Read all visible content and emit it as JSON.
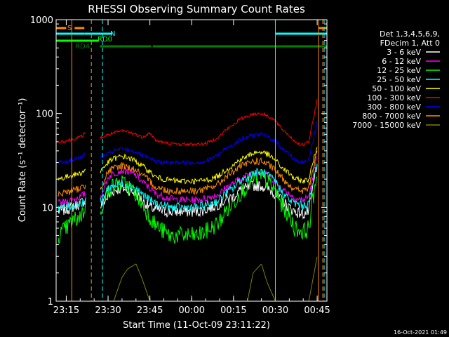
{
  "chart_data": {
    "type": "line",
    "title": "RHESSI Observing Summary Count Rates",
    "xlabel": "Start Time (11-Oct-09 23:11:22)",
    "ylabel": "Count Rate (s⁻¹ detector⁻¹)",
    "y_scale": "log",
    "ylim": [
      1,
      1000
    ],
    "xlim": [
      "23:11:22",
      "00:48:30"
    ],
    "x_ticks": [
      "23:15",
      "23:30",
      "23:45",
      "00:00",
      "00:15",
      "00:30",
      "00:45"
    ],
    "y_ticks": [
      "1",
      "10",
      "100",
      "1000"
    ],
    "legend_header": [
      "Det 1,3,4,5,6,9,",
      "FDecim 1, Att 0"
    ],
    "legend_position": "right",
    "timestamp": "16-Oct-2021 01:49",
    "x": [
      "23:12",
      "23:15",
      "23:17",
      "23:20",
      "23:22",
      "23:25",
      "23:27",
      "23:30",
      "23:32",
      "23:35",
      "23:37",
      "23:40",
      "23:42",
      "23:45",
      "23:47",
      "23:50",
      "23:52",
      "23:55",
      "23:57",
      "00:00",
      "00:02",
      "00:05",
      "00:07",
      "00:10",
      "00:12",
      "00:15",
      "00:17",
      "00:20",
      "00:22",
      "00:25",
      "00:27",
      "00:30",
      "00:32",
      "00:35",
      "00:37",
      "00:40",
      "00:42",
      "00:45"
    ],
    "series": [
      {
        "name": "3 - 6 keV",
        "color": "#ffffff",
        "values": [
          9,
          9.5,
          10,
          11,
          12,
          null,
          10,
          13,
          15,
          16,
          15.5,
          14,
          12,
          10,
          9.5,
          9,
          9,
          9,
          9,
          9,
          9,
          9.5,
          10,
          11,
          12,
          13,
          15,
          16,
          17,
          17,
          16,
          14,
          12,
          10,
          9,
          8.5,
          9,
          30
        ]
      },
      {
        "name": "6 - 12 keV",
        "color": "#ff00ff",
        "values": [
          11,
          11.5,
          12,
          13,
          14,
          null,
          12,
          21,
          23,
          25,
          24,
          22,
          19,
          16,
          14,
          13,
          12.5,
          12,
          12,
          12,
          12,
          12.5,
          13,
          14,
          16,
          18,
          20,
          22,
          24,
          24,
          22,
          19,
          16,
          14,
          12.5,
          12,
          13,
          35
        ]
      },
      {
        "name": "12 - 25 keV",
        "color": "#00ff00",
        "values": [
          5,
          6,
          7,
          8,
          10,
          null,
          9,
          15,
          17,
          18,
          17,
          14,
          11,
          8,
          6.5,
          5.5,
          5,
          5,
          5,
          5,
          5,
          5.5,
          6,
          7,
          9,
          11,
          14,
          17,
          20,
          21,
          19,
          15,
          11,
          8,
          6,
          5.5,
          6,
          25
        ]
      },
      {
        "name": "25 - 50 keV",
        "color": "#00ffff",
        "values": [
          10,
          10,
          10.5,
          11,
          12,
          null,
          11,
          16,
          17,
          18,
          17.5,
          16,
          14,
          12,
          11,
          10.5,
          10,
          10,
          10,
          10,
          10,
          10.5,
          11,
          12,
          14,
          16,
          19,
          21,
          23,
          24,
          22,
          19,
          15,
          12,
          11,
          10.5,
          11,
          30
        ]
      },
      {
        "name": "50 - 100 keV",
        "color": "#ffff00",
        "values": [
          20,
          21,
          22,
          23,
          25,
          null,
          24,
          30,
          33,
          35,
          34,
          31,
          28,
          24,
          21,
          20,
          19.5,
          19,
          19,
          19,
          19,
          19.5,
          20,
          22,
          25,
          28,
          32,
          35,
          38,
          39,
          37,
          32,
          27,
          23,
          20,
          19,
          20,
          45
        ]
      },
      {
        "name": "100 - 300 keV",
        "color": "#ff0000",
        "values": [
          50,
          51,
          53,
          56,
          62,
          null,
          55,
          59,
          62,
          65,
          64,
          60,
          56,
          62,
          52,
          49,
          48,
          47,
          47,
          47,
          47,
          48,
          51,
          57,
          66,
          76,
          86,
          94,
          99,
          100,
          95,
          84,
          70,
          58,
          50,
          46,
          50,
          140
        ]
      },
      {
        "name": "300 - 800 keV",
        "color": "#0000ff",
        "values": [
          30,
          31,
          32,
          34,
          37,
          null,
          34,
          37,
          40,
          42,
          41,
          39,
          36,
          33,
          31,
          30,
          30,
          30,
          30,
          30,
          30,
          31,
          33,
          37,
          42,
          47,
          52,
          56,
          59,
          60,
          57,
          51,
          44,
          37,
          32,
          30,
          32,
          80
        ]
      },
      {
        "name": "800 - 7000 keV",
        "color": "#ff8c00",
        "values": [
          14,
          14.5,
          15,
          16,
          17,
          null,
          15.5,
          24,
          26,
          28,
          27,
          25,
          22,
          19,
          16.5,
          15.5,
          15,
          15,
          15,
          15,
          15,
          15.5,
          16.5,
          18,
          21,
          24,
          27,
          29,
          31,
          31,
          29,
          25,
          21,
          17.5,
          15.5,
          15,
          16,
          40
        ]
      },
      {
        "name": "7000 - 15000 keV",
        "color": "#808000",
        "values": [
          1,
          1,
          1,
          1,
          1,
          null,
          1,
          1,
          1,
          1.8,
          2.2,
          2.5,
          1.8,
          1,
          1,
          1,
          1,
          1,
          1,
          1,
          1,
          1,
          1,
          1,
          1,
          1,
          1,
          1,
          2,
          2.5,
          1.6,
          1,
          1,
          1,
          1,
          1,
          1,
          3
        ]
      }
    ],
    "flags": [
      {
        "label": "S",
        "color": "#ff8c00",
        "segments": [
          [
            "23:11:22",
            "23:15:00"
          ],
          [
            "23:18:00",
            "23:21:30"
          ],
          [
            "00:45:30",
            "00:48:30"
          ]
        ]
      },
      {
        "label": "N",
        "color": "#00ffff",
        "segments": [
          [
            "23:11:22",
            "23:21:30"
          ],
          [
            "23:21:30",
            "23:31:30"
          ],
          [
            "00:30:00",
            "00:48:30"
          ]
        ]
      },
      {
        "label": "RD0",
        "color": "#00ff00",
        "segments": [
          [
            "23:11:22",
            "23:26:30"
          ]
        ]
      },
      {
        "label": "RD4",
        "color": "#008000",
        "segments": [
          [
            "23:27:00",
            "23:45:30"
          ],
          [
            "23:46:00",
            "00:48:30"
          ]
        ]
      }
    ],
    "vlines": [
      {
        "t": "23:17:00",
        "color": "#ff8c00",
        "style": "solid"
      },
      {
        "t": "23:24:00",
        "color": "#ff8c00",
        "style": "dashed"
      },
      {
        "t": "23:28:00",
        "color": "#00ffff",
        "style": "dashed"
      },
      {
        "t": "00:30:00",
        "color": "#00ffff",
        "style": "solid"
      },
      {
        "t": "00:45:30",
        "color": "#ff8c00",
        "style": "solid"
      },
      {
        "t": "00:47:30",
        "color": "#00ffff",
        "style": "dashed"
      },
      {
        "t": "00:47:00",
        "color": "#ff8c00",
        "style": "dashed"
      }
    ]
  }
}
